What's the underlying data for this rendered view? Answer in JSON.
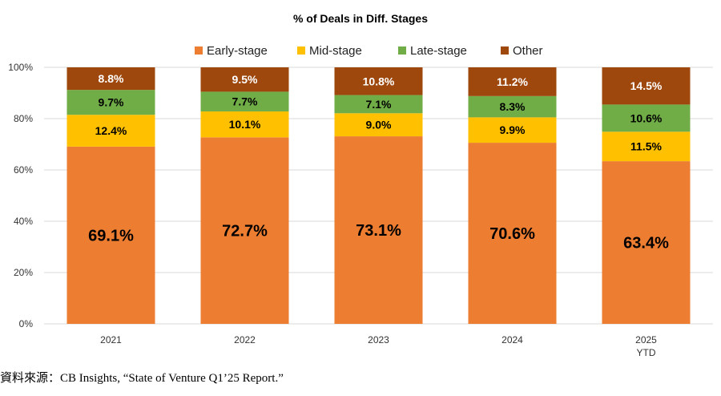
{
  "chart_data": {
    "type": "bar",
    "stacked": true,
    "percent_stacked": true,
    "title": "% of Deals in Diff. Stages",
    "categories": [
      "2021",
      "2022",
      "2023",
      "2024",
      "2025\nYTD"
    ],
    "series": [
      {
        "name": "Early-stage",
        "color": "#ED7D31",
        "values": [
          69.1,
          72.7,
          73.1,
          70.6,
          63.4
        ],
        "labels": [
          "69.1%",
          "72.7%",
          "73.1%",
          "70.6%",
          "63.4%"
        ]
      },
      {
        "name": "Mid-stage",
        "color": "#FFC000",
        "values": [
          12.4,
          10.1,
          9.0,
          9.9,
          11.5
        ],
        "labels": [
          "12.4%",
          "10.1%",
          "9.0%",
          "9.9%",
          "11.5%"
        ]
      },
      {
        "name": "Late-stage",
        "color": "#70AD47",
        "values": [
          9.7,
          7.7,
          7.1,
          8.3,
          10.6
        ],
        "labels": [
          "9.7%",
          "7.7%",
          "7.1%",
          "8.3%",
          "10.6%"
        ]
      },
      {
        "name": "Other",
        "color": "#9E480E",
        "values": [
          8.8,
          9.5,
          10.8,
          11.2,
          14.5
        ],
        "labels": [
          "8.8%",
          "9.5%",
          "10.8%",
          "11.2%",
          "14.5%"
        ]
      }
    ],
    "ylim": [
      0,
      100
    ],
    "yticks": [
      "0%",
      "20%",
      "40%",
      "60%",
      "80%",
      "100%"
    ],
    "grid": true,
    "legend": "top"
  },
  "source": "資料來源：CB Insights, “State of Venture Q1’25 Report.”"
}
